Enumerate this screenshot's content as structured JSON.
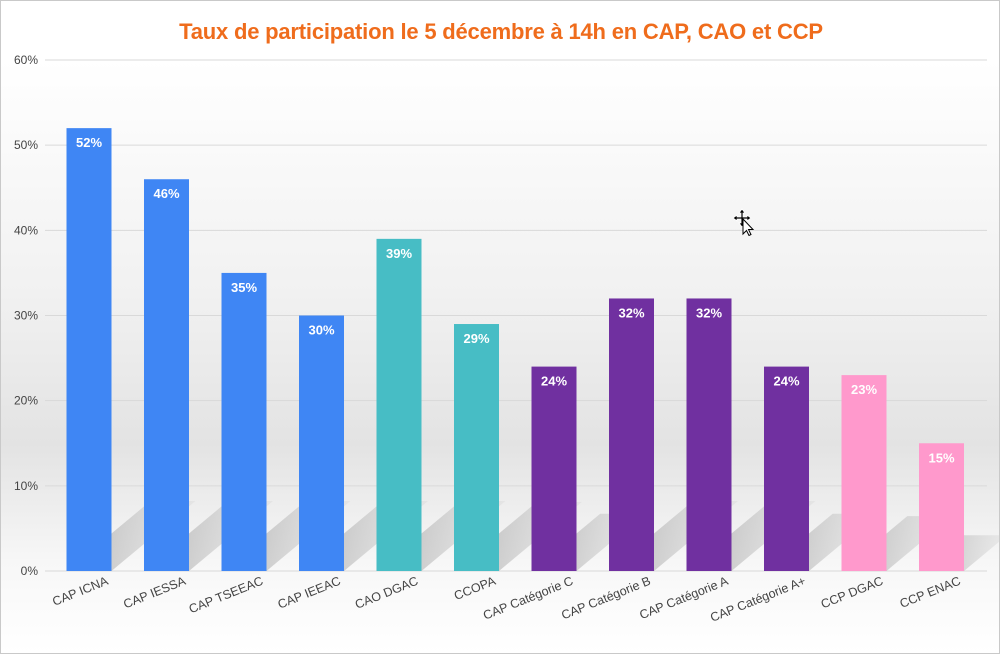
{
  "chart_data": {
    "type": "bar",
    "title": "Taux de participation le 5 décembre à 14h en CAP, CAO et CCP",
    "xlabel": "",
    "ylabel": "",
    "ylim": [
      0,
      60
    ],
    "yticks": [
      0,
      10,
      20,
      30,
      40,
      50,
      60
    ],
    "ytick_labels": [
      "0%",
      "10%",
      "20%",
      "30%",
      "40%",
      "50%",
      "60%"
    ],
    "categories": [
      "CAP ICNA",
      "CAP IESSA",
      "CAP TSEEAC",
      "CAP IEEAC",
      "CAO DGAC",
      "CCOPA",
      "CAP Catégorie C",
      "CAP Catégorie B",
      "CAP Catégorie A",
      "CAP Catégorie A+",
      "CCP DGAC",
      "CCP ENAC"
    ],
    "values": [
      52,
      46,
      35,
      30,
      39,
      29,
      24,
      32,
      32,
      24,
      23,
      15
    ],
    "value_labels": [
      "52%",
      "46%",
      "35%",
      "30%",
      "39%",
      "29%",
      "24%",
      "32%",
      "32%",
      "24%",
      "23%",
      "15%"
    ],
    "bar_colors": [
      "#3f86f4",
      "#3f86f4",
      "#3f86f4",
      "#3f86f4",
      "#47bdc5",
      "#47bdc5",
      "#7030a0",
      "#7030a0",
      "#7030a0",
      "#7030a0",
      "#ff99cc",
      "#ff99cc"
    ],
    "grid": true,
    "legend": "none"
  },
  "colors": {
    "title": "#ef6c1c",
    "grid": "#d9d9d9",
    "axis_text": "#444444",
    "value_text": "#ffffff"
  },
  "icons": {
    "cursor": "move-cursor-icon"
  }
}
